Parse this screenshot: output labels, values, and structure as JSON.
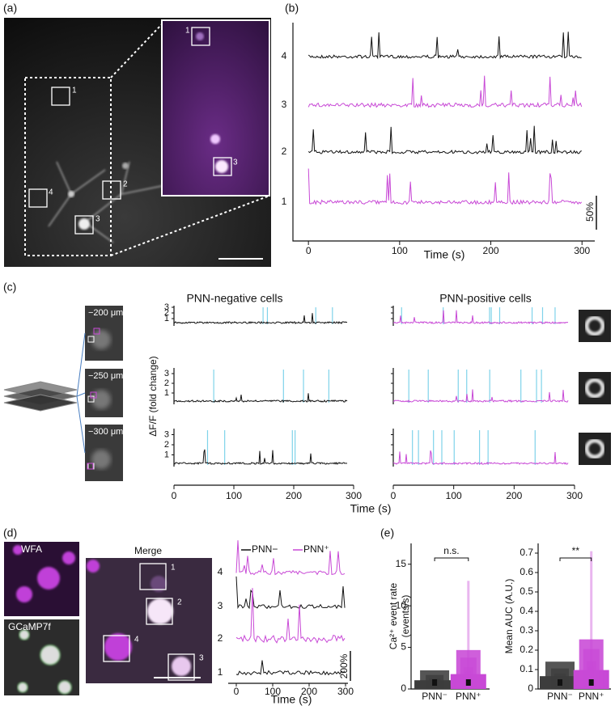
{
  "panel_a": {
    "label": "(a)",
    "roi_labels": [
      "1",
      "2",
      "3",
      "4"
    ],
    "inset_roi_labels": [
      "1",
      "3"
    ]
  },
  "panel_b": {
    "label": "(b)",
    "x_axis_label": "Time (s)",
    "xlim": [
      -17,
      314
    ],
    "xticks": [
      0,
      100,
      200,
      300
    ],
    "trace_labels": [
      "4",
      "3",
      "2",
      "1"
    ],
    "scale_bar": "50%"
  },
  "panel_c": {
    "label": "(c)",
    "depths": [
      "−200 μm",
      "−250 μm",
      "−300 μm"
    ],
    "titles": [
      "PNN-negative cells",
      "PNN-positive cells"
    ],
    "y_axis_label": "ΔF/F (fold change)",
    "yticks": [
      1,
      2,
      3
    ],
    "xlim": [
      0,
      300
    ],
    "xticks": [
      0,
      100,
      200,
      300
    ],
    "x_axis_label": "Time (s)"
  },
  "panel_d": {
    "label": "(d)",
    "image_labels": [
      "WFA",
      "GCaMP7f",
      "Merge"
    ],
    "legend": [
      "PNN−",
      "PNN⁺"
    ],
    "roi_labels": [
      "1",
      "2",
      "3",
      "4"
    ],
    "trace_labels": [
      "4",
      "3",
      "2",
      "1"
    ],
    "xlim": [
      0,
      300
    ],
    "xticks": [
      0,
      100,
      200,
      300
    ],
    "x_axis_label": "Time (s)",
    "scale_bar": "200%"
  },
  "panel_e": {
    "label": "(e)",
    "charts": [
      {
        "y_axis_label": [
          "Ca²⁺ event rate",
          "(events/s)"
        ],
        "ylim": [
          0,
          17.5
        ],
        "yticks": [
          0,
          5,
          10,
          15
        ],
        "categories": [
          "PNN⁻",
          "PNN⁺"
        ],
        "significance": "n.s."
      },
      {
        "y_axis_label": [
          "Mean AUC (A.U.)"
        ],
        "ylim": [
          0,
          0.75
        ],
        "yticks": [
          0,
          0.1,
          0.2,
          0.3,
          0.4,
          0.5,
          0.6,
          0.7
        ],
        "categories": [
          "PNN⁻",
          "PNN⁺"
        ],
        "significance": "**"
      }
    ]
  }
}
